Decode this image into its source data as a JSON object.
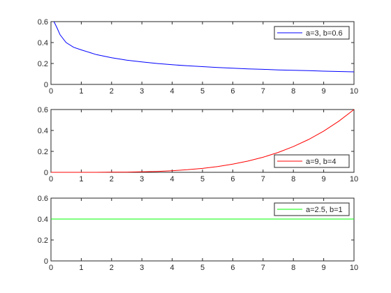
{
  "chart_data": [
    {
      "type": "line",
      "xlim": [
        0,
        10
      ],
      "ylim": [
        0,
        0.6
      ],
      "xticks": [
        "0",
        "1",
        "2",
        "3",
        "4",
        "5",
        "6",
        "7",
        "8",
        "9",
        "10"
      ],
      "yticks": [
        "0",
        "0.2",
        "0.4",
        "0.6"
      ],
      "grid": false,
      "legend_position": "top-right",
      "series": [
        {
          "name": "a=3, b=0.6",
          "color": "#0000ff",
          "x": [
            0.1,
            0.2,
            0.3,
            0.5,
            0.75,
            1,
            1.5,
            2,
            2.5,
            3,
            3.5,
            4,
            4.5,
            5,
            5.5,
            6,
            6.5,
            7,
            7.5,
            8,
            8.5,
            9,
            9.5,
            10
          ],
          "y": [
            0.6,
            0.54,
            0.475,
            0.4,
            0.355,
            0.33,
            0.285,
            0.255,
            0.232,
            0.215,
            0.2,
            0.188,
            0.178,
            0.17,
            0.162,
            0.155,
            0.149,
            0.144,
            0.139,
            0.135,
            0.131,
            0.127,
            0.123,
            0.12
          ]
        }
      ]
    },
    {
      "type": "line",
      "xlim": [
        0,
        10
      ],
      "ylim": [
        0,
        0.6
      ],
      "xticks": [
        "0",
        "1",
        "2",
        "3",
        "4",
        "5",
        "6",
        "7",
        "8",
        "9",
        "10"
      ],
      "yticks": [
        "0",
        "0.2",
        "0.4",
        "0.6"
      ],
      "grid": false,
      "legend_position": "bottom-right",
      "series": [
        {
          "name": "a=9, b=4",
          "color": "#ff0000",
          "x": [
            0,
            0.5,
            1,
            1.5,
            2,
            2.5,
            3,
            3.5,
            4,
            4.5,
            5,
            5.5,
            6,
            6.5,
            7,
            7.5,
            8,
            8.5,
            9,
            9.5,
            10
          ],
          "y": [
            0,
            0,
            0.0001,
            0.0003,
            0.001,
            0.0023,
            0.0049,
            0.009,
            0.0154,
            0.0246,
            0.0375,
            0.0549,
            0.0778,
            0.1071,
            0.1441,
            0.1898,
            0.2458,
            0.3131,
            0.3937,
            0.4888,
            0.6
          ]
        }
      ]
    },
    {
      "type": "line",
      "xlim": [
        0,
        10
      ],
      "ylim": [
        0,
        0.6
      ],
      "xticks": [
        "0",
        "1",
        "2",
        "3",
        "4",
        "5",
        "6",
        "7",
        "8",
        "9",
        "10"
      ],
      "yticks": [
        "0",
        "0.2",
        "0.4",
        "0.6"
      ],
      "grid": false,
      "legend_position": "top-right",
      "series": [
        {
          "name": "a=2.5, b=1",
          "color": "#00ff00",
          "x": [
            0,
            10
          ],
          "y": [
            0.4,
            0.4
          ]
        }
      ]
    }
  ]
}
